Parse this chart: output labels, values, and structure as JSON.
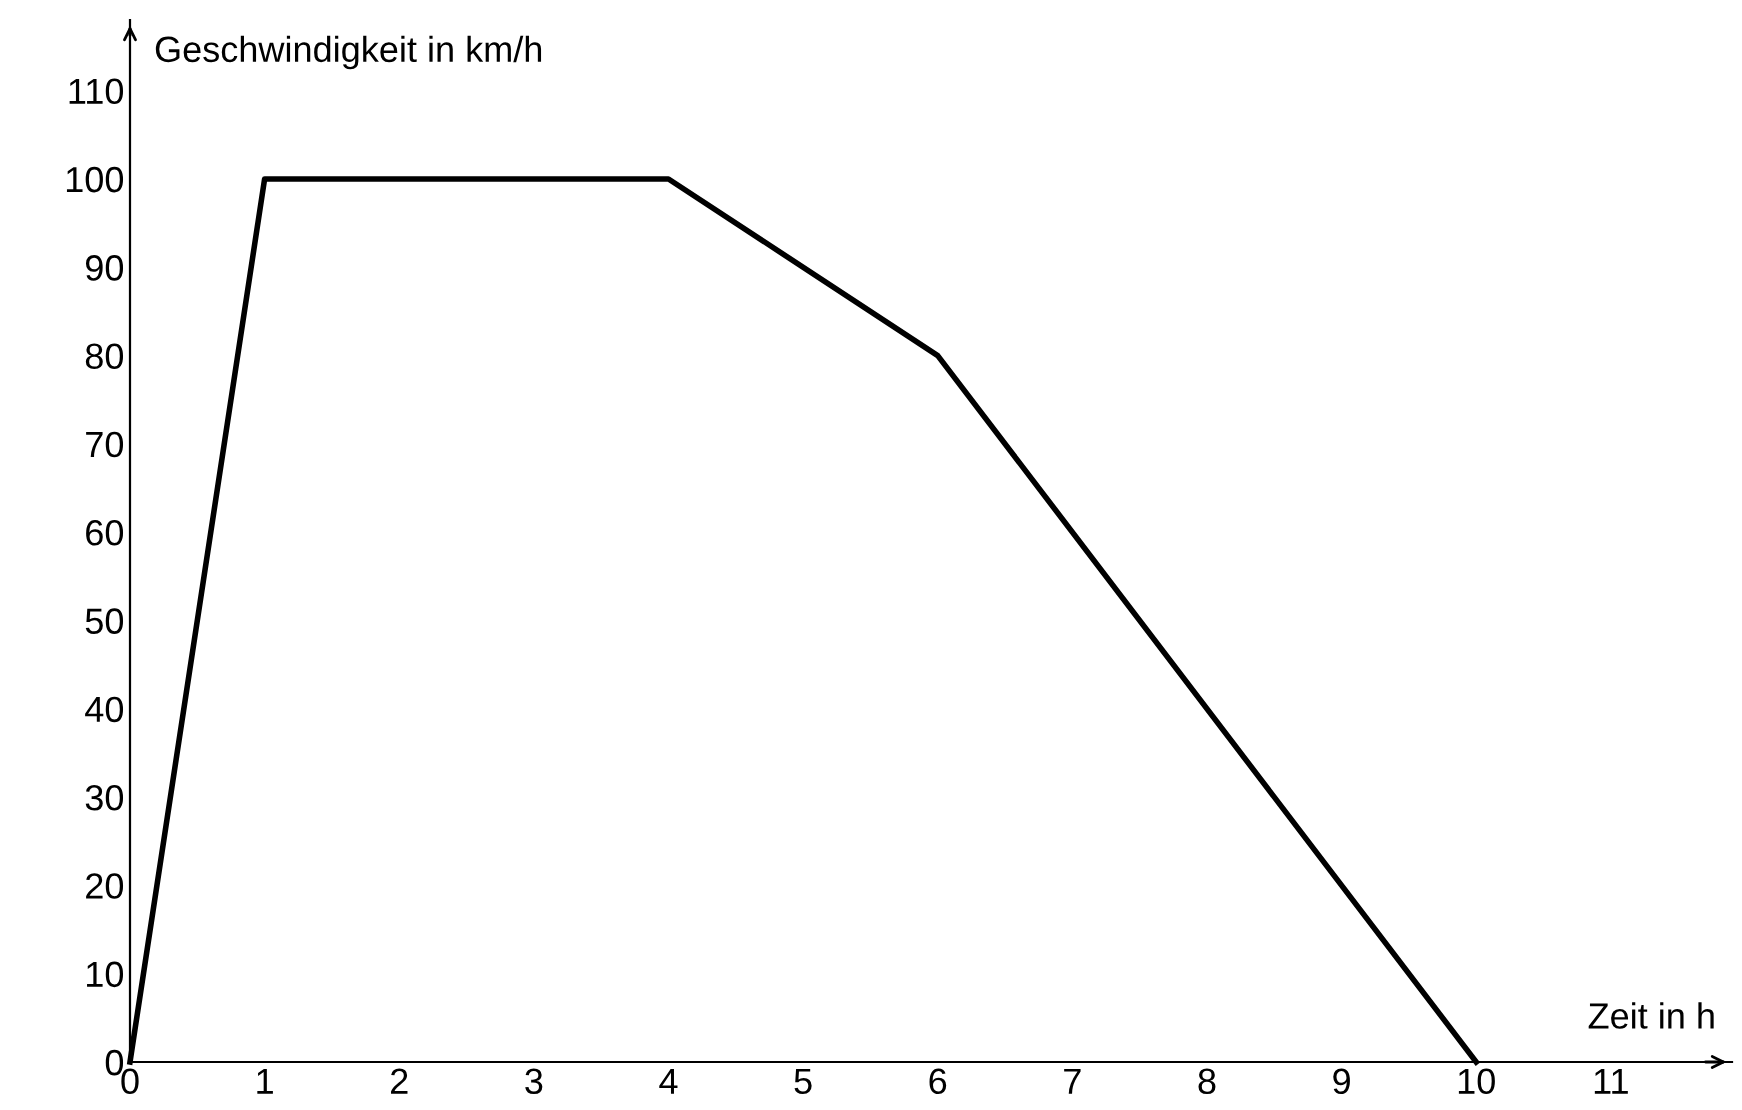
{
  "chart_data": {
    "type": "line",
    "xlabel": "Zeit in h",
    "ylabel": "Geschwindigkeit in km/h",
    "x": [
      0,
      1,
      4,
      6,
      10
    ],
    "series": [
      {
        "color": "#000000",
        "values": [
          0,
          100,
          100,
          80,
          0
        ]
      }
    ],
    "xlim": [
      0,
      11.9
    ],
    "ylim": [
      0,
      118
    ],
    "xticks": [
      0,
      1,
      2,
      3,
      4,
      5,
      6,
      7,
      8,
      9,
      10,
      11
    ],
    "yticks": [
      0,
      10,
      20,
      30,
      40,
      50,
      60,
      70,
      80,
      90,
      100,
      110
    ],
    "grid": false,
    "marker": "none",
    "line_style": "solid"
  }
}
